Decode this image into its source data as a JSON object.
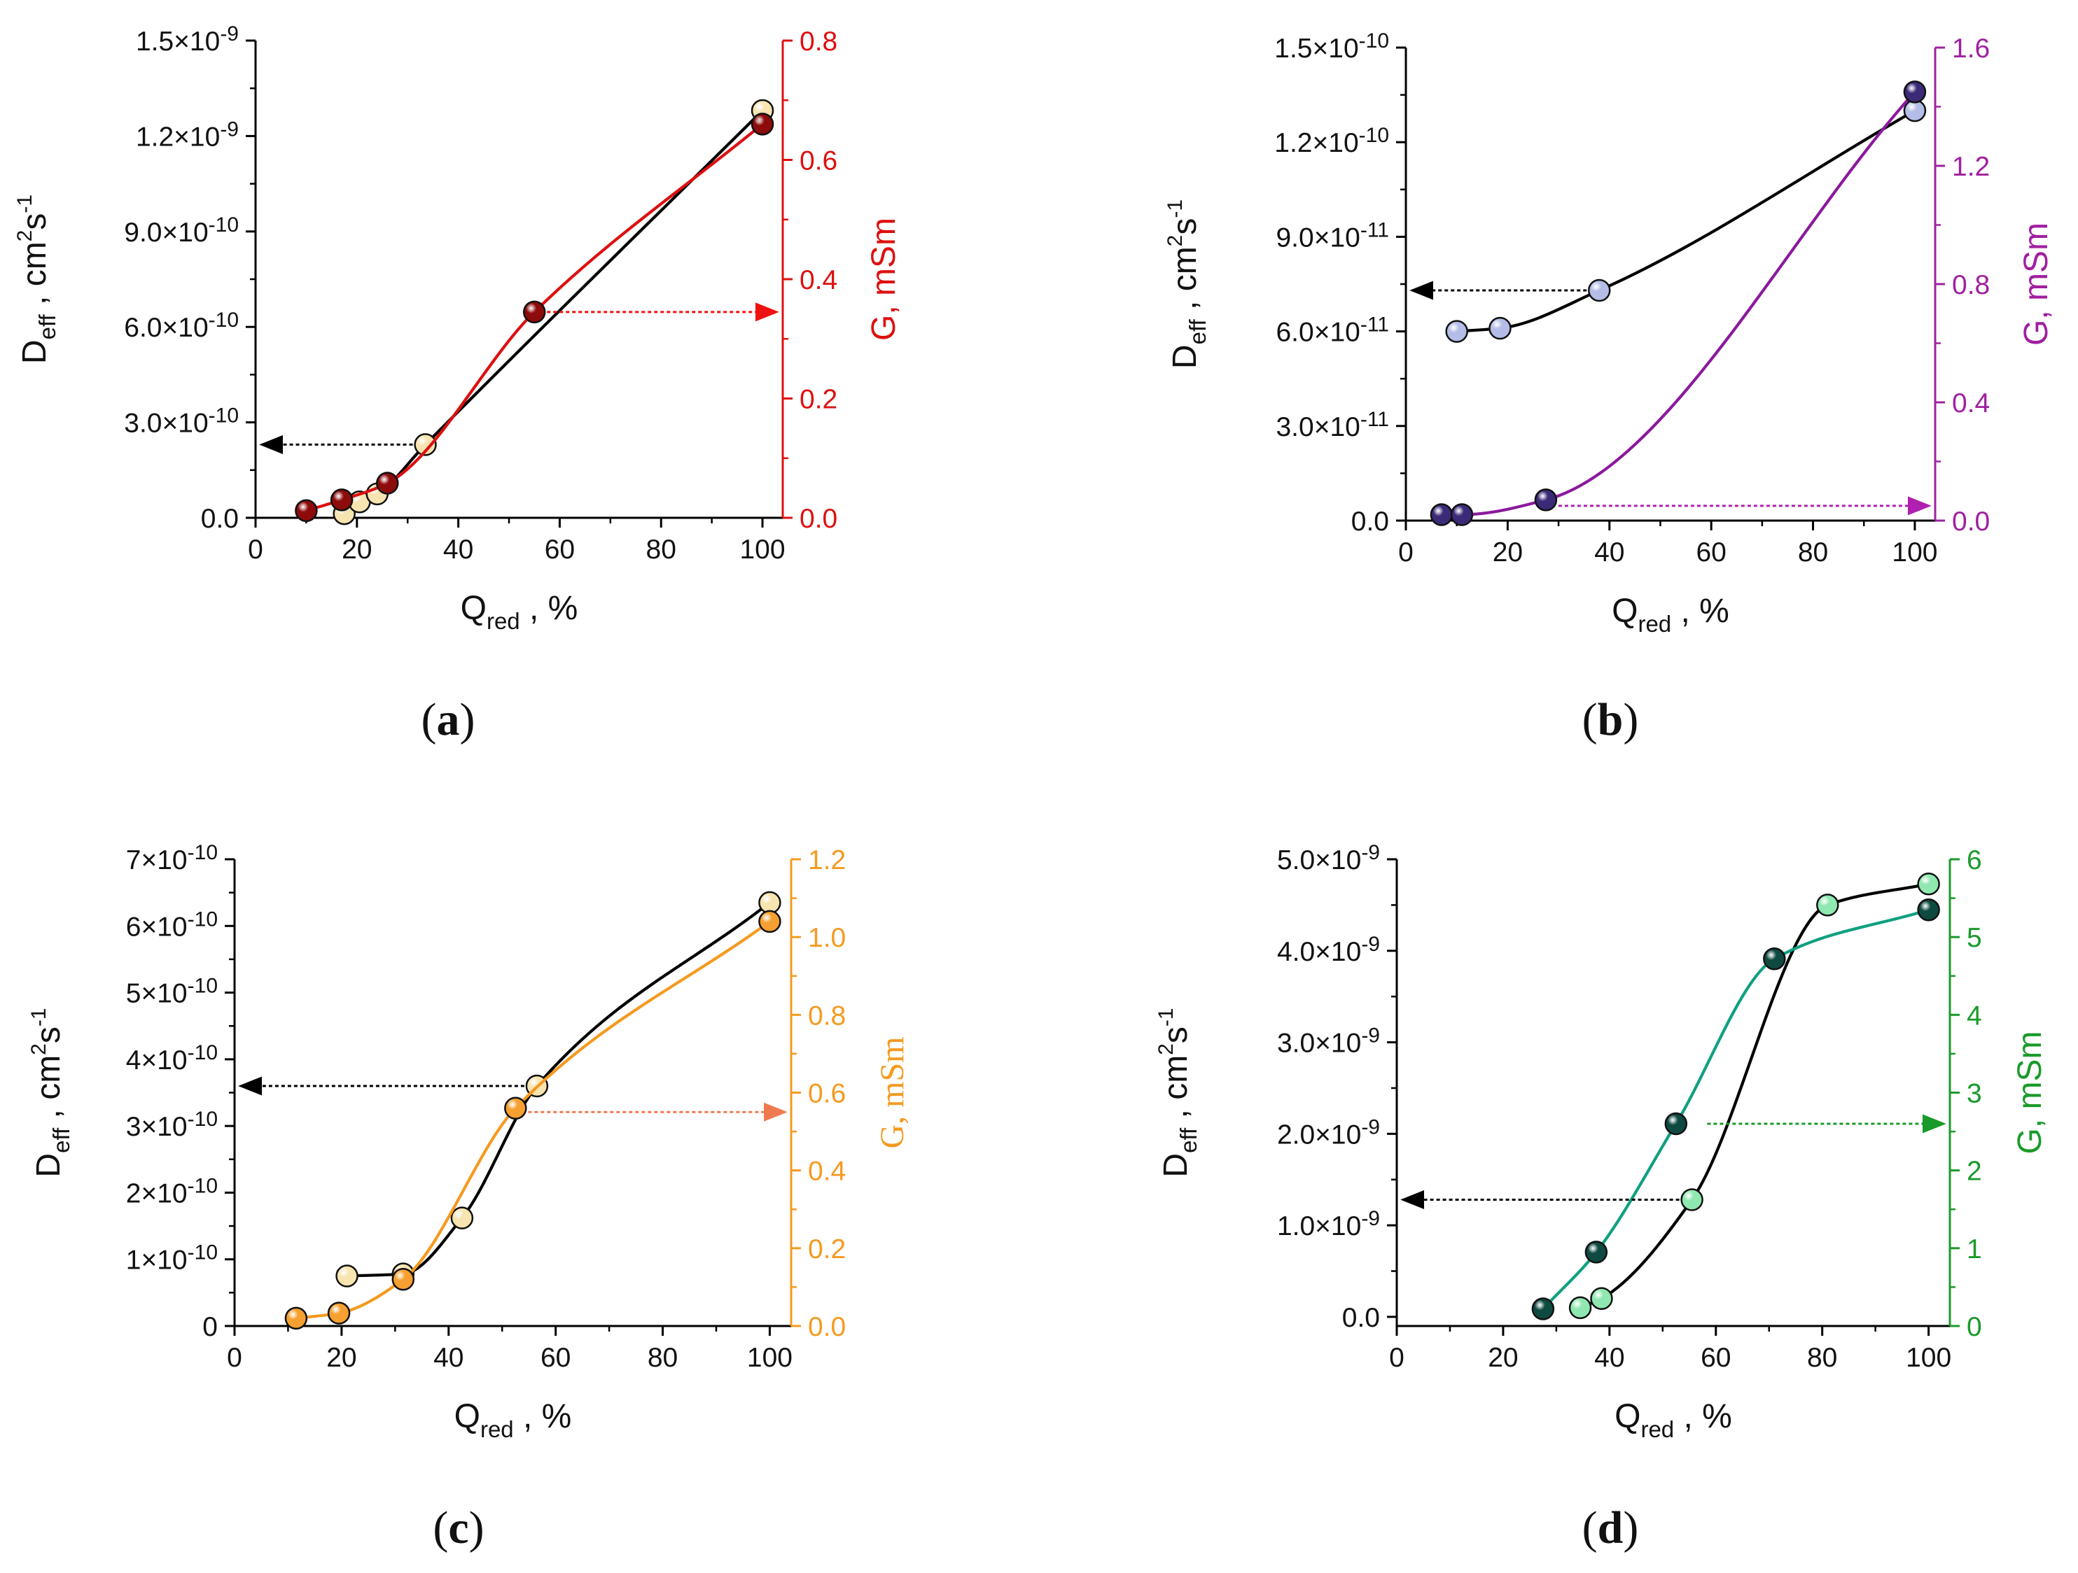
{
  "chart_data": [
    {
      "type": "line",
      "panel_label": "a",
      "xlabel": {
        "main": "Q",
        "sub": "red",
        "rest": " , %"
      },
      "ylabel_left": {
        "main": "D",
        "sub": "eff",
        "mid": " , cm",
        "sup1": "2",
        "mid2": "s",
        "sup2": "-1"
      },
      "ylabel_right": "G, mSm",
      "xlim": [
        0,
        104
      ],
      "xticks": [
        0,
        20,
        40,
        60,
        80,
        100
      ],
      "ylim_left": [
        0,
        1.5
      ],
      "yticks_left": [
        0,
        0.3,
        0.6,
        0.9,
        1.2,
        1.5
      ],
      "ytick_labels_left": [
        "0.0",
        "3.0×10^-10",
        "6.0×10^-10",
        "9.0×10^-10",
        "1.2×10^-9",
        "1.5×10^-9"
      ],
      "ylim_right": [
        0,
        0.8
      ],
      "yticks_right": [
        0,
        0.2,
        0.4,
        0.6,
        0.8
      ],
      "ytick_labels_right": [
        "0.0",
        "0.2",
        "0.4",
        "0.6",
        "0.8"
      ],
      "right_color": "#dd1010",
      "right_label_serif": false,
      "series": [
        {
          "name": "D_eff",
          "axis": "left",
          "x": [
            17.5,
            20.5,
            24,
            33.5,
            100
          ],
          "y": [
            0.013,
            0.05,
            0.075,
            0.23,
            1.28
          ],
          "line_color": "#000000",
          "marker_color": "#f7e4b0"
        },
        {
          "name": "G",
          "axis": "right",
          "x": [
            10,
            17,
            26,
            55,
            100
          ],
          "y": [
            0.012,
            0.03,
            0.058,
            0.345,
            0.66
          ],
          "line_color": "#dd1010",
          "marker_color": "#8e0b0b"
        }
      ],
      "arrows": [
        {
          "from": [
            33.5,
            0.23
          ],
          "to_axis": "left",
          "y": 0.23,
          "y_axis": "left",
          "color": "#000000"
        },
        {
          "from": [
            55,
            0.345
          ],
          "to_axis": "right",
          "y": 0.345,
          "y_axis": "right",
          "color": "#ee1111"
        }
      ]
    },
    {
      "type": "line",
      "panel_label": "b",
      "xlabel": {
        "main": "Q",
        "sub": "red",
        "rest": " , %"
      },
      "ylabel_left": {
        "main": "D",
        "sub": "eff",
        "mid": " , cm",
        "sup1": "2",
        "mid2": "s",
        "sup2": "-1"
      },
      "ylabel_right": "G, mSm",
      "xlim": [
        0,
        104
      ],
      "xticks": [
        0,
        20,
        40,
        60,
        80,
        100
      ],
      "ylim_left": [
        0,
        15
      ],
      "yticks_left": [
        0,
        3,
        6,
        9,
        12,
        15
      ],
      "ytick_labels_left": [
        "0.0",
        "3.0×10^-11",
        "6.0×10^-11",
        "9.0×10^-11",
        "1.2×10^-10",
        "1.5×10^-10"
      ],
      "ylim_right": [
        0,
        1.6
      ],
      "yticks_right": [
        0,
        0.4,
        0.8,
        1.2,
        1.6
      ],
      "ytick_labels_right": [
        "0.0",
        "0.4",
        "0.8",
        "1.2",
        "1.6"
      ],
      "right_color": "#a020a0",
      "right_label_serif": false,
      "series": [
        {
          "name": "D_eff",
          "axis": "left",
          "x": [
            10,
            18.5,
            38,
            100
          ],
          "y": [
            6.0,
            6.1,
            7.3,
            13.0
          ],
          "line_color": "#000000",
          "marker_color": "#b4bde8"
        },
        {
          "name": "G",
          "axis": "right",
          "x": [
            7,
            11,
            27.5,
            100
          ],
          "y": [
            0.02,
            0.02,
            0.07,
            1.45
          ],
          "line_color": "#8a1a9c",
          "marker_color": "#3b2a78"
        }
      ],
      "arrows": [
        {
          "from": [
            38,
            7.3
          ],
          "to_axis": "left",
          "y": 7.3,
          "y_axis": "left",
          "color": "#000000"
        },
        {
          "from": [
            27.5,
            0.05
          ],
          "to_axis": "right",
          "y": 0.05,
          "y_axis": "right",
          "color": "#b020b0"
        }
      ]
    },
    {
      "type": "line",
      "panel_label": "c",
      "xlabel": {
        "main": "Q",
        "sub": "red",
        "rest": " , %"
      },
      "ylabel_left": {
        "main": "D",
        "sub": "eff",
        "mid": " , cm",
        "sup1": "2",
        "mid2": "s",
        "sup2": "-1"
      },
      "ylabel_right": "G, mSm",
      "xlim": [
        0,
        104
      ],
      "xticks": [
        0,
        20,
        40,
        60,
        80,
        100
      ],
      "ylim_left": [
        0,
        7
      ],
      "yticks_left": [
        0,
        1,
        2,
        3,
        4,
        5,
        6,
        7
      ],
      "ytick_labels_left": [
        "0",
        "1×10^-10",
        "2×10^-10",
        "3×10^-10",
        "4×10^-10",
        "5×10^-10",
        "6×10^-10",
        "7×10^-10"
      ],
      "ylim_right": [
        0,
        1.2
      ],
      "yticks_right": [
        0,
        0.2,
        0.4,
        0.6,
        0.8,
        1.0,
        1.2
      ],
      "ytick_labels_right": [
        "0.0",
        "0.2",
        "0.4",
        "0.6",
        "0.8",
        "1.0",
        "1.2"
      ],
      "right_color": "#f59a20",
      "right_label_serif": true,
      "series": [
        {
          "name": "D_eff",
          "axis": "left",
          "x": [
            21,
            31.5,
            42.5,
            56.5,
            100
          ],
          "y": [
            0.75,
            0.78,
            1.62,
            3.6,
            6.35
          ],
          "line_color": "#000000",
          "marker_color": "#f7e4b0"
        },
        {
          "name": "G",
          "axis": "right",
          "x": [
            11.5,
            19.5,
            31.5,
            52.5,
            100
          ],
          "y": [
            0.02,
            0.033,
            0.12,
            0.56,
            1.04
          ],
          "line_color": "#f59a20",
          "marker_color": "#f5a030"
        }
      ],
      "arrows": [
        {
          "from": [
            56.5,
            3.6
          ],
          "to_axis": "left",
          "y": 3.6,
          "y_axis": "left",
          "color": "#000000"
        },
        {
          "from": [
            52.5,
            0.55
          ],
          "to_axis": "right",
          "y": 0.55,
          "y_axis": "right",
          "color": "#f07a50"
        }
      ]
    },
    {
      "type": "line",
      "panel_label": "d",
      "xlabel": {
        "main": "Q",
        "sub": "red",
        "rest": " , %"
      },
      "ylabel_left": {
        "main": "D",
        "sub": "eff",
        "mid": " , cm",
        "sup1": "2",
        "mid2": "s",
        "sup2": "-1"
      },
      "ylabel_right": "G, mSm",
      "xlim": [
        0,
        104
      ],
      "xticks": [
        0,
        20,
        40,
        60,
        80,
        100
      ],
      "ylim_left": [
        -0.1,
        5.0
      ],
      "yticks_left": [
        0,
        1,
        2,
        3,
        4,
        5
      ],
      "ytick_labels_left": [
        "0.0",
        "1.0×10^-9",
        "2.0×10^-9",
        "3.0×10^-9",
        "4.0×10^-9",
        "5.0×10^-9"
      ],
      "ylim_right": [
        0,
        6
      ],
      "yticks_right": [
        0,
        1,
        2,
        3,
        4,
        5,
        6
      ],
      "ytick_labels_right": [
        "0",
        "1",
        "2",
        "3",
        "4",
        "5",
        "6"
      ],
      "right_color": "#1a9a2a",
      "right_label_serif": false,
      "series": [
        {
          "name": "D_eff",
          "axis": "left",
          "x": [
            34.5,
            38.5,
            55.5,
            81,
            100
          ],
          "y": [
            0.1,
            0.2,
            1.28,
            4.5,
            4.73
          ],
          "line_color": "#000000",
          "marker_color": "#8ee8b0"
        },
        {
          "name": "G",
          "axis": "right",
          "x": [
            27.5,
            37.5,
            52.5,
            71,
            100
          ],
          "y": [
            0.22,
            0.95,
            2.6,
            4.72,
            5.35
          ],
          "line_color": "#10a080",
          "marker_color": "#0e4a40"
        }
      ],
      "arrows": [
        {
          "from": [
            55.5,
            1.28
          ],
          "to_axis": "left",
          "y": 1.28,
          "y_axis": "left",
          "color": "#000000"
        },
        {
          "from": [
            56,
            2.6
          ],
          "to_axis": "right",
          "y": 2.6,
          "y_axis": "right",
          "color": "#1a9a2a"
        }
      ]
    }
  ]
}
